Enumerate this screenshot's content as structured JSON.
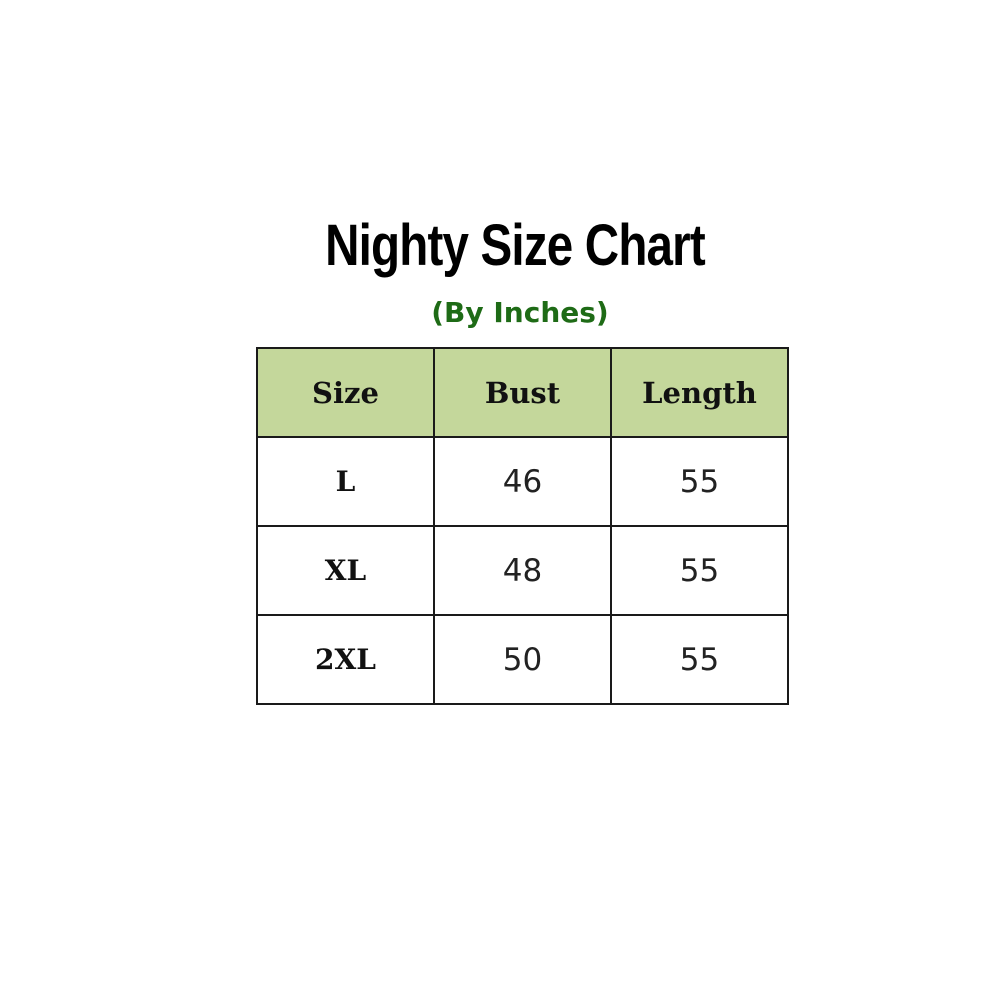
{
  "title": "Nighty Size Chart",
  "subtitle": "(By Inches)",
  "colors": {
    "header_fill": "#c4d79b",
    "subtitle": "#1e6b16"
  },
  "table": {
    "headers": [
      "Size",
      "Bust",
      "Length"
    ],
    "rows": [
      [
        "L",
        "46",
        "55"
      ],
      [
        "XL",
        "48",
        "55"
      ],
      [
        "2XL",
        "50",
        "55"
      ]
    ]
  }
}
